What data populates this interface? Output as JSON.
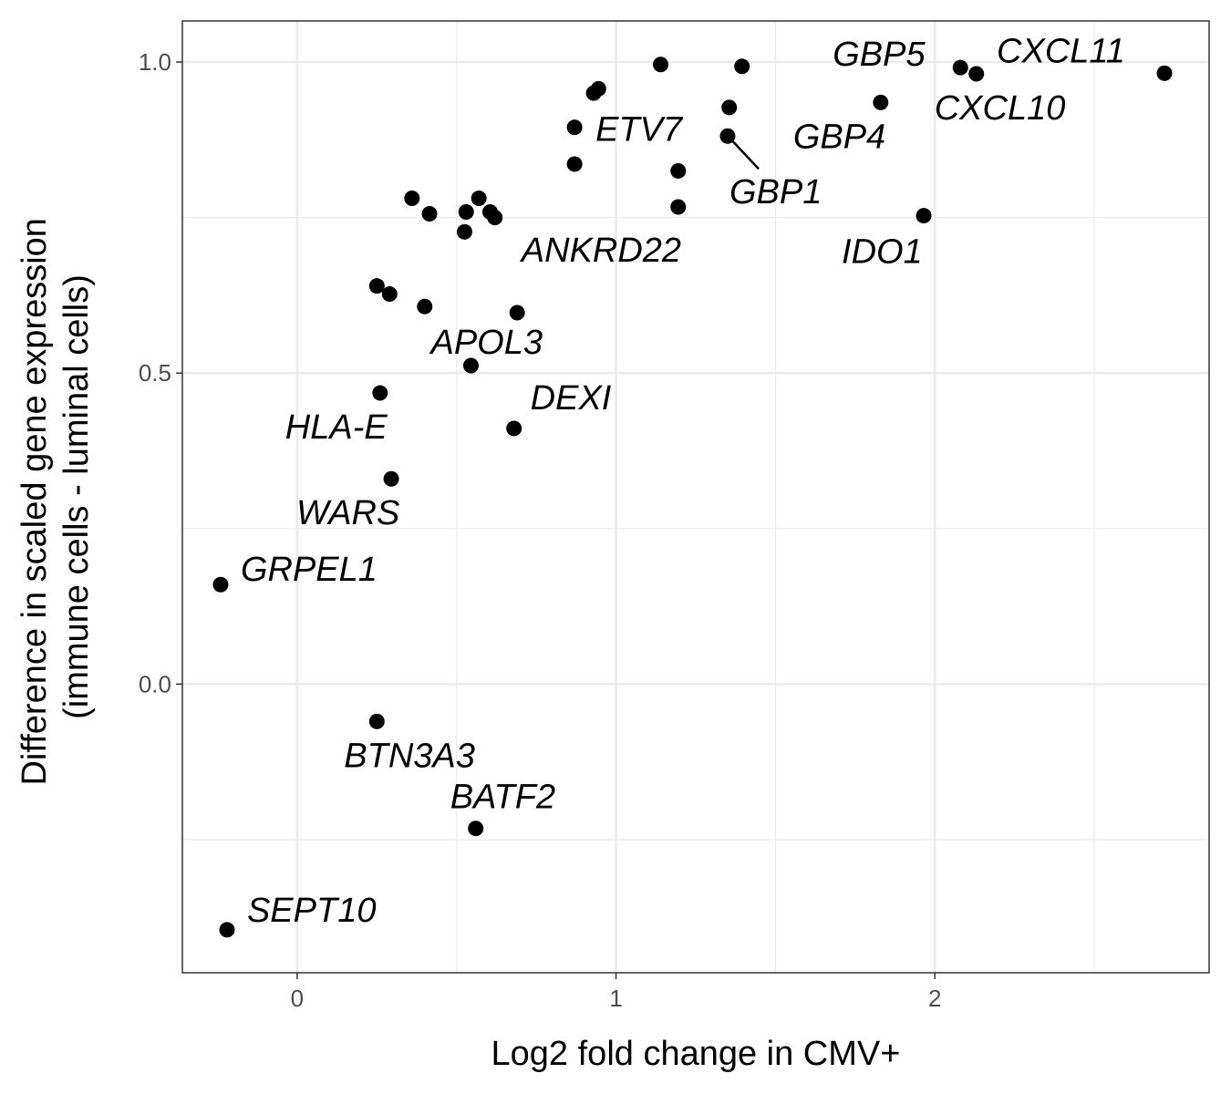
{
  "chart_data": {
    "type": "scatter",
    "xlabel": "Log2 fold change in CMV+",
    "ylabel_lines": [
      "Difference in scaled gene expression",
      "(immune cells - luminal cells)"
    ],
    "xlim": [
      -0.36,
      2.86
    ],
    "ylim": [
      -0.464,
      1.066
    ],
    "x_ticks": [
      {
        "value": 0,
        "label": "0"
      },
      {
        "value": 1,
        "label": "1"
      },
      {
        "value": 2,
        "label": "2"
      }
    ],
    "y_ticks": [
      {
        "value": 0.0,
        "label": "0.0"
      },
      {
        "value": 0.5,
        "label": "0.5"
      },
      {
        "value": 1.0,
        "label": "1.0"
      }
    ],
    "grid": true,
    "points": [
      {
        "x": -0.22,
        "y": -0.395,
        "label": "SEPT10"
      },
      {
        "x": -0.24,
        "y": 0.16,
        "label": "GRPEL1"
      },
      {
        "x": 0.25,
        "y": -0.06,
        "label": "BTN3A3"
      },
      {
        "x": 0.56,
        "y": -0.232,
        "label": "BATF2"
      },
      {
        "x": 0.295,
        "y": 0.33,
        "label": "WARS"
      },
      {
        "x": 0.26,
        "y": 0.468,
        "label": "HLA-E"
      },
      {
        "x": 0.68,
        "y": 0.411,
        "label": "DEXI"
      },
      {
        "x": 0.545,
        "y": 0.512,
        "label": "APOL3"
      },
      {
        "x": 0.69,
        "y": 0.597,
        "label": ""
      },
      {
        "x": 0.25,
        "y": 0.64,
        "label": ""
      },
      {
        "x": 0.29,
        "y": 0.627,
        "label": ""
      },
      {
        "x": 0.4,
        "y": 0.607,
        "label": ""
      },
      {
        "x": 0.36,
        "y": 0.781,
        "label": ""
      },
      {
        "x": 0.415,
        "y": 0.756,
        "label": ""
      },
      {
        "x": 0.57,
        "y": 0.781,
        "label": ""
      },
      {
        "x": 0.53,
        "y": 0.759,
        "label": ""
      },
      {
        "x": 0.605,
        "y": 0.759,
        "label": ""
      },
      {
        "x": 0.62,
        "y": 0.75,
        "label": ""
      },
      {
        "x": 0.525,
        "y": 0.727,
        "label": ""
      },
      {
        "x": 1.195,
        "y": 0.767,
        "label": "ANKRD22"
      },
      {
        "x": 0.87,
        "y": 0.836,
        "label": ""
      },
      {
        "x": 1.195,
        "y": 0.825,
        "label": ""
      },
      {
        "x": 0.87,
        "y": 0.895,
        "label": "ETV7"
      },
      {
        "x": 1.35,
        "y": 0.881,
        "label": "GBP1"
      },
      {
        "x": 1.355,
        "y": 0.927,
        "label": ""
      },
      {
        "x": 0.93,
        "y": 0.95,
        "label": ""
      },
      {
        "x": 0.945,
        "y": 0.957,
        "label": ""
      },
      {
        "x": 1.14,
        "y": 0.996,
        "label": ""
      },
      {
        "x": 1.395,
        "y": 0.993,
        "label": ""
      },
      {
        "x": 1.83,
        "y": 0.935,
        "label": "GBP4"
      },
      {
        "x": 1.965,
        "y": 0.753,
        "label": "IDO1"
      },
      {
        "x": 2.08,
        "y": 0.991,
        "label": "GBP5"
      },
      {
        "x": 2.13,
        "y": 0.981,
        "label": "CXCL10"
      },
      {
        "x": 2.72,
        "y": 0.982,
        "label": "CXCL11"
      }
    ]
  }
}
